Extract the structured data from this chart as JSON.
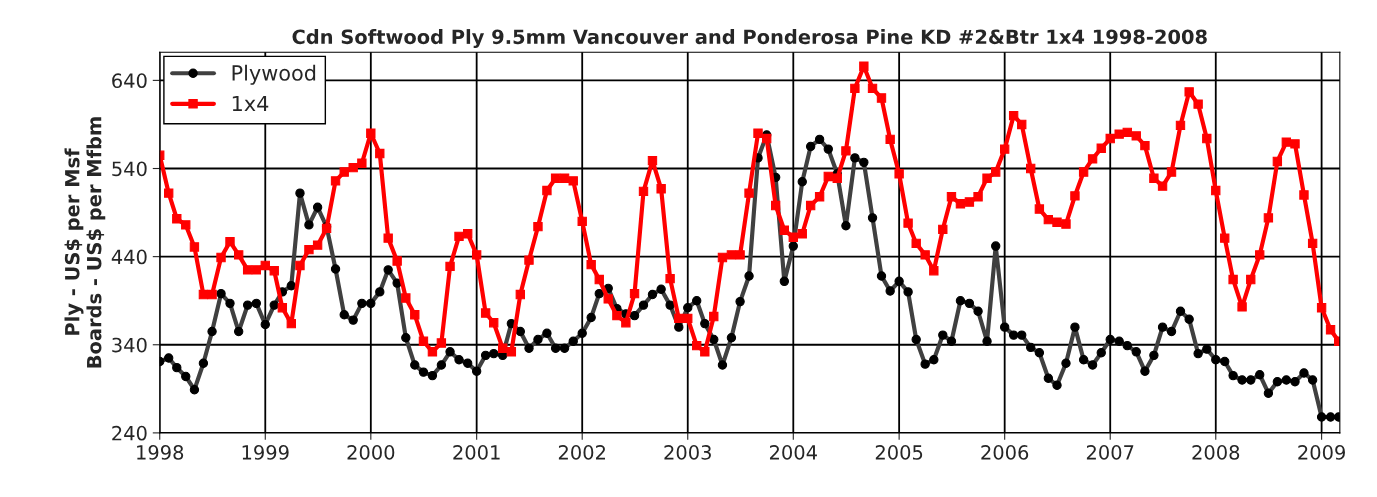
{
  "chart_data": {
    "type": "line",
    "title": "Cdn Softwood Ply 9.5mm Vancouver and Ponderosa Pine KD #2&Btr 1x4 1998-2008",
    "ylabel": "Ply - US$ per Msf\nBoards - US$ per Mfbm",
    "x": [
      "1998-01",
      "1998-02",
      "1998-03",
      "1998-04",
      "1998-05",
      "1998-06",
      "1998-07",
      "1998-08",
      "1998-09",
      "1998-10",
      "1998-11",
      "1998-12",
      "1999-01",
      "1999-02",
      "1999-03",
      "1999-04",
      "1999-05",
      "1999-06",
      "1999-07",
      "1999-08",
      "1999-09",
      "1999-10",
      "1999-11",
      "1999-12",
      "2000-01",
      "2000-02",
      "2000-03",
      "2000-04",
      "2000-05",
      "2000-06",
      "2000-07",
      "2000-08",
      "2000-09",
      "2000-10",
      "2000-11",
      "2000-12",
      "2001-01",
      "2001-02",
      "2001-03",
      "2001-04",
      "2001-05",
      "2001-06",
      "2001-07",
      "2001-08",
      "2001-09",
      "2001-10",
      "2001-11",
      "2001-12",
      "2002-01",
      "2002-02",
      "2002-03",
      "2002-04",
      "2002-05",
      "2002-06",
      "2002-07",
      "2002-08",
      "2002-09",
      "2002-10",
      "2002-11",
      "2002-12",
      "2003-01",
      "2003-02",
      "2003-03",
      "2003-04",
      "2003-05",
      "2003-06",
      "2003-07",
      "2003-08",
      "2003-09",
      "2003-10",
      "2003-11",
      "2003-12",
      "2004-01",
      "2004-02",
      "2004-03",
      "2004-04",
      "2004-05",
      "2004-06",
      "2004-07",
      "2004-08",
      "2004-09",
      "2004-10",
      "2004-11",
      "2004-12",
      "2005-01",
      "2005-02",
      "2005-03",
      "2005-04",
      "2005-05",
      "2005-06",
      "2005-07",
      "2005-08",
      "2005-09",
      "2005-10",
      "2005-11",
      "2005-12",
      "2006-01",
      "2006-02",
      "2006-03",
      "2006-04",
      "2006-05",
      "2006-06",
      "2006-07",
      "2006-08",
      "2006-09",
      "2006-10",
      "2006-11",
      "2006-12",
      "2007-01",
      "2007-02",
      "2007-03",
      "2007-04",
      "2007-05",
      "2007-06",
      "2007-07",
      "2007-08",
      "2007-09",
      "2007-10",
      "2007-11",
      "2007-12",
      "2008-01",
      "2008-02",
      "2008-03",
      "2008-04",
      "2008-05",
      "2008-06",
      "2008-07",
      "2008-08",
      "2008-09",
      "2008-10",
      "2008-11",
      "2008-12",
      "2009-01",
      "2009-02",
      "2009-03"
    ],
    "xlim": [
      "1998-01-01",
      "2009-03-05"
    ],
    "xticks": [
      "1998",
      "1999",
      "2000",
      "2001",
      "2002",
      "2003",
      "2004",
      "2005",
      "2006",
      "2007",
      "2008",
      "2009"
    ],
    "ylim": [
      240,
      672
    ],
    "yticks": [
      240,
      340,
      440,
      540,
      640
    ],
    "grid": true,
    "legend": "top left",
    "line_style": "solid",
    "series": [
      {
        "name": "Plywood",
        "color": "#404040",
        "marker": "circle",
        "values": [
          321,
          325,
          314,
          304,
          289,
          319,
          355,
          398,
          387,
          355,
          385,
          387,
          363,
          385,
          400,
          407,
          512,
          476,
          496,
          474,
          426,
          374,
          368,
          387,
          387,
          400,
          425,
          410,
          348,
          317,
          309,
          305,
          317,
          332,
          323,
          319,
          310,
          328,
          330,
          328,
          364,
          355,
          336,
          346,
          353,
          336,
          336,
          344,
          353,
          371,
          398,
          404,
          381,
          375,
          373,
          385,
          397,
          403,
          385,
          360,
          382,
          390,
          364,
          346,
          317,
          348,
          389,
          418,
          552,
          578,
          530,
          412,
          452,
          525,
          565,
          573,
          562,
          534,
          475,
          552,
          547,
          484,
          418,
          401,
          412,
          400,
          346,
          318,
          323,
          351,
          344,
          390,
          387,
          378,
          344,
          452,
          360,
          351,
          351,
          337,
          331,
          302,
          294,
          319,
          360,
          323,
          317,
          331,
          346,
          344,
          339,
          332,
          310,
          328,
          360,
          355,
          378,
          369,
          330,
          335,
          323,
          321,
          305,
          300,
          300,
          306,
          285,
          298,
          300,
          298,
          308,
          300,
          258,
          258,
          258
        ]
      },
      {
        "name": "1x4",
        "color": "#ff0000",
        "marker": "square",
        "values": [
          555,
          512,
          483,
          476,
          451,
          397,
          397,
          439,
          457,
          442,
          425,
          425,
          430,
          424,
          382,
          364,
          430,
          448,
          453,
          472,
          526,
          536,
          541,
          546,
          580,
          557,
          461,
          435,
          393,
          374,
          344,
          332,
          342,
          429,
          463,
          466,
          442,
          376,
          365,
          336,
          332,
          397,
          436,
          474,
          515,
          529,
          529,
          526,
          480,
          431,
          414,
          392,
          373,
          365,
          398,
          514,
          549,
          517,
          415,
          370,
          370,
          339,
          332,
          372,
          439,
          442,
          442,
          512,
          580,
          574,
          498,
          470,
          462,
          466,
          498,
          508,
          531,
          529,
          560,
          631,
          656,
          631,
          620,
          573,
          534,
          478,
          455,
          442,
          424,
          471,
          508,
          500,
          502,
          508,
          529,
          536,
          562,
          600,
          590,
          540,
          494,
          482,
          479,
          477,
          509,
          536,
          551,
          563,
          574,
          579,
          581,
          577,
          566,
          529,
          520,
          536,
          589,
          627,
          613,
          574,
          515,
          461,
          414,
          383,
          414,
          442,
          484,
          548,
          570,
          568,
          510,
          455,
          382,
          357,
          344
        ]
      }
    ]
  }
}
